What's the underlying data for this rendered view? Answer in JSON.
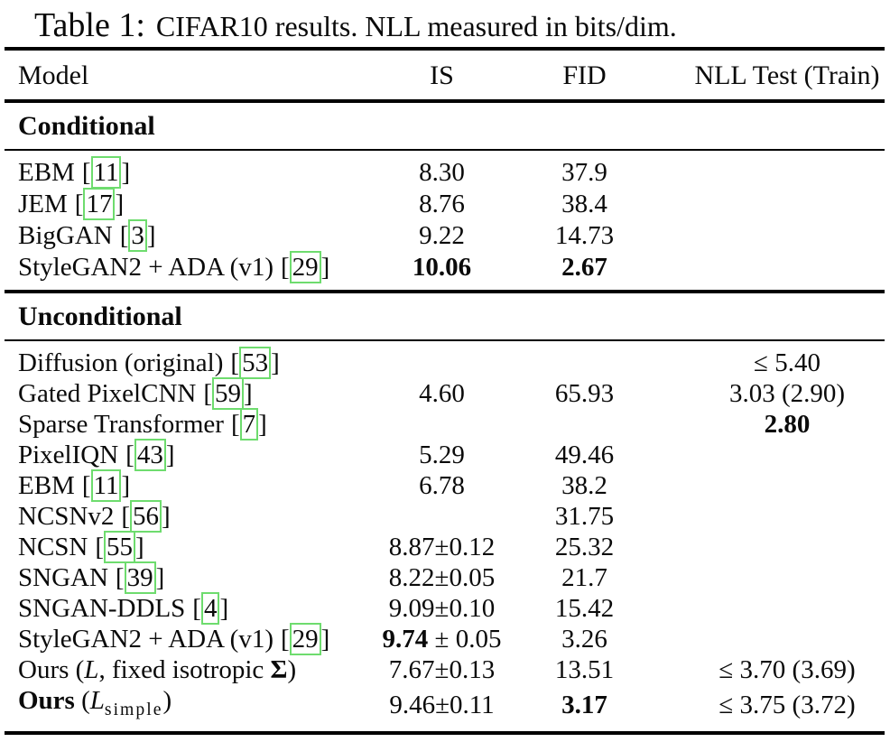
{
  "title": {
    "label": "Table 1:",
    "text": "CIFAR10 results. NLL measured in bits/dim."
  },
  "link_border_color": "#6edc6e",
  "columns": {
    "model": "Model",
    "is": "IS",
    "fid": "FID",
    "nll": "NLL Test (Train)"
  },
  "sections": [
    {
      "name": "Conditional",
      "rows": [
        {
          "model": "EBM",
          "cite": "11",
          "is": "8.30",
          "fid": "37.9"
        },
        {
          "model": "JEM",
          "cite": "17",
          "is": "8.76",
          "fid": "38.4"
        },
        {
          "model": "BigGAN",
          "cite": "3",
          "is": "9.22",
          "fid": "14.73"
        },
        {
          "model": "StyleGAN2 + ADA (v1)",
          "cite": "29",
          "is": "10.06",
          "fid": "2.67"
        }
      ]
    },
    {
      "name": "Unconditional",
      "rows": [
        {
          "model": "Diffusion (original)",
          "cite": "53",
          "nll": "≤ 5.40"
        },
        {
          "model": "Gated PixelCNN",
          "cite": "59",
          "is": "4.60",
          "fid": "65.93",
          "nll": "3.03 (2.90)"
        },
        {
          "model": "Sparse Transformer",
          "cite": "7",
          "nll": "2.80"
        },
        {
          "model": "PixelIQN",
          "cite": "43",
          "is": "5.29",
          "fid": "49.46"
        },
        {
          "model": "EBM",
          "cite": "11",
          "is": "6.78",
          "fid": "38.2"
        },
        {
          "model": "NCSNv2",
          "cite": "56",
          "fid": "31.75"
        },
        {
          "model": "NCSN",
          "cite": "55",
          "is": "8.87±0.12",
          "fid": "25.32"
        },
        {
          "model": "SNGAN",
          "cite": "39",
          "is": "8.22±0.05",
          "fid": "21.7"
        },
        {
          "model": "SNGAN-DDLS",
          "cite": "4",
          "is": "9.09±0.10",
          "fid": "15.42"
        },
        {
          "model": "StyleGAN2 + ADA (v1)",
          "cite": "29",
          "is_main": "9.74",
          "is_pm": " ± 0.05",
          "fid": "3.26"
        },
        {
          "model_prefix": "Ours (",
          "model_var": "L",
          "model_mid": ", fixed isotropic ",
          "model_sigma": "Σ",
          "model_close": ")",
          "is": "7.67±0.13",
          "fid": "13.51",
          "nll": "≤ 3.70 (3.69)"
        },
        {
          "model_bold": "Ours",
          "model_open": " (",
          "model_var": "L",
          "model_sub": "simple",
          "model_close": ")",
          "is": "9.46±0.11",
          "fid": "3.17",
          "nll": "≤ 3.75 (3.72)"
        }
      ]
    }
  ]
}
